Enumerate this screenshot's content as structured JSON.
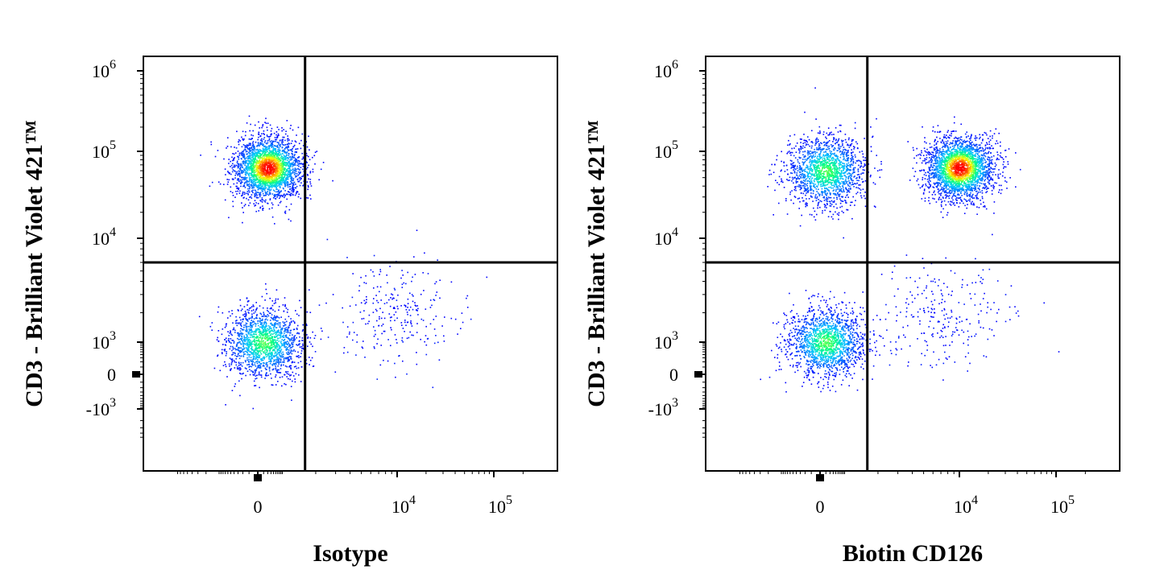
{
  "chart_data": [
    {
      "type": "scatter",
      "subtype": "flow-cytometry-density-dot-plot",
      "xlabel": "Isotype",
      "ylabel": "CD3 - Brilliant Violet 421™",
      "x_scale": "biexponential",
      "y_scale": "biexponential",
      "x_ticks": [
        {
          "value": 0,
          "label": "0"
        },
        {
          "value": 10000,
          "label": "10^4"
        },
        {
          "value": 100000,
          "label": "10^5"
        }
      ],
      "y_ticks": [
        {
          "value": -1000,
          "label": "-10^3"
        },
        {
          "value": 0,
          "label": "0"
        },
        {
          "value": 1000,
          "label": "10^3"
        },
        {
          "value": 10000,
          "label": "10^4"
        },
        {
          "value": 100000,
          "label": "10^5"
        },
        {
          "value": 1000000,
          "label": "10^6"
        }
      ],
      "gates": {
        "x": 1600,
        "y": 6000
      },
      "color_scale": [
        "#0000ff",
        "#00c8ff",
        "#00ff80",
        "#ffff00",
        "#ff0000"
      ],
      "populations": [
        {
          "name": "upper-left",
          "x_center": 200,
          "y_center": 65000,
          "density": "high"
        },
        {
          "name": "lower-left",
          "x_center": 100,
          "y_center": 1000,
          "density": "medium"
        },
        {
          "name": "lower-right",
          "x_center": 10000,
          "y_center": 2000,
          "density": "sparse"
        }
      ]
    },
    {
      "type": "scatter",
      "subtype": "flow-cytometry-density-dot-plot",
      "xlabel": "Biotin CD126",
      "ylabel": "CD3 - Brilliant Violet 421™",
      "x_scale": "biexponential",
      "y_scale": "biexponential",
      "x_ticks": [
        {
          "value": 0,
          "label": "0"
        },
        {
          "value": 10000,
          "label": "10^4"
        },
        {
          "value": 100000,
          "label": "10^5"
        }
      ],
      "y_ticks": [
        {
          "value": -1000,
          "label": "-10^3"
        },
        {
          "value": 0,
          "label": "0"
        },
        {
          "value": 1000,
          "label": "10^3"
        },
        {
          "value": 10000,
          "label": "10^4"
        },
        {
          "value": 100000,
          "label": "10^5"
        },
        {
          "value": 1000000,
          "label": "10^6"
        }
      ],
      "gates": {
        "x": 1600,
        "y": 6000
      },
      "color_scale": [
        "#0000ff",
        "#00c8ff",
        "#00ff80",
        "#ffff00",
        "#ff0000"
      ],
      "populations": [
        {
          "name": "upper-left",
          "x_center": 100,
          "y_center": 60000,
          "density": "medium"
        },
        {
          "name": "upper-right",
          "x_center": 10000,
          "y_center": 65000,
          "density": "high"
        },
        {
          "name": "lower-left",
          "x_center": 100,
          "y_center": 1000,
          "density": "medium"
        },
        {
          "name": "lower-right",
          "x_center": 7000,
          "y_center": 1800,
          "density": "sparse"
        }
      ]
    }
  ]
}
